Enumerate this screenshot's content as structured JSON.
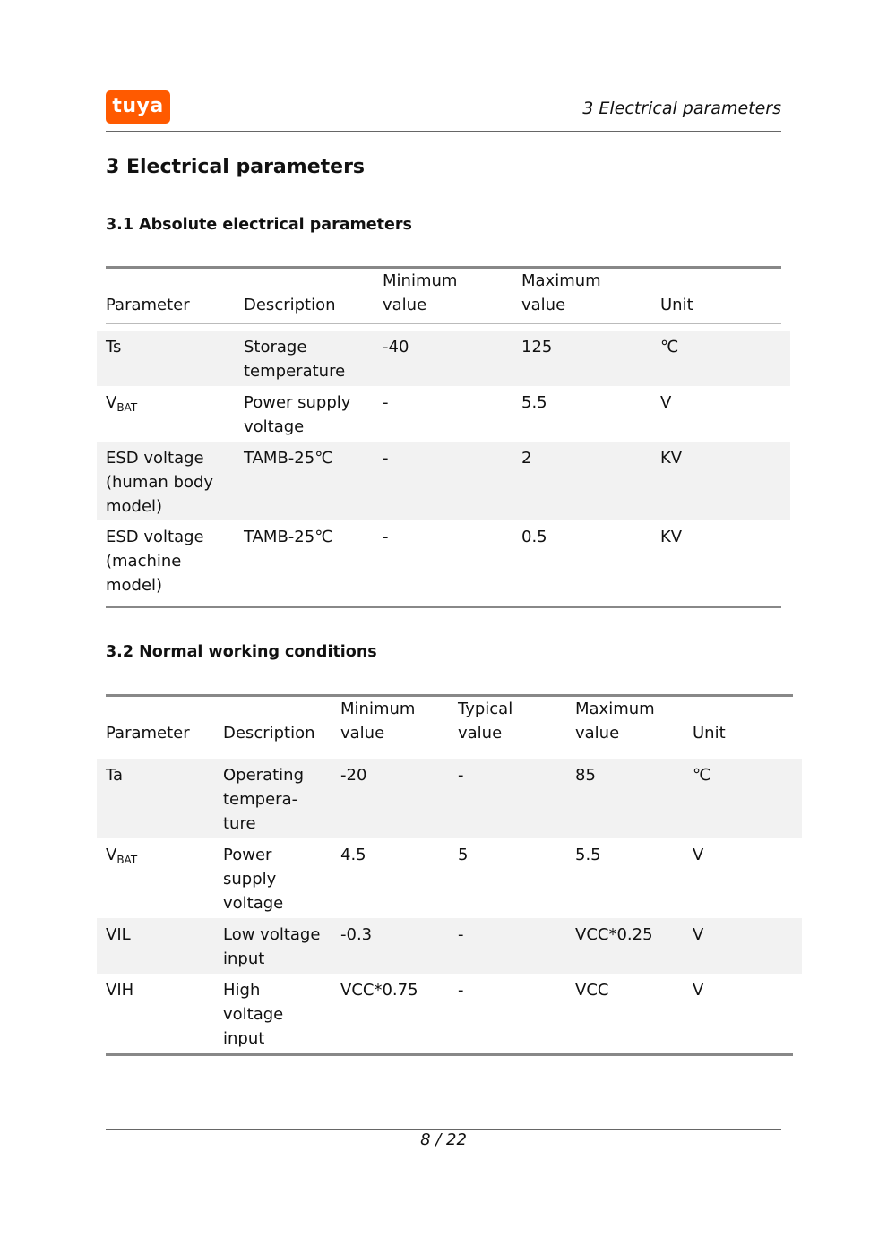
{
  "header": {
    "logo_text": "tuya",
    "logo_color": "#ff5a00",
    "running_title": "3  Electrical parameters"
  },
  "section_title": "3  Electrical parameters",
  "table1": {
    "title": "3.1  Absolute electrical parameters",
    "columns": [
      "Parameter",
      "Description",
      "Minimum\nvalue",
      "Maximum\nvalue",
      "Unit"
    ],
    "rows": [
      [
        {
          "main": "Ts"
        },
        "Storage\ntemperature",
        "-40",
        "125",
        "℃"
      ],
      [
        {
          "main": "V",
          "sub": "BAT"
        },
        "Power supply\nvoltage",
        "-",
        "5.5",
        "V"
      ],
      [
        {
          "main": "ESD voltage\n(human body\nmodel)"
        },
        "TAMB-25℃",
        "-",
        "2",
        "KV"
      ],
      [
        {
          "main": "ESD voltage\n(machine\nmodel)"
        },
        "TAMB-25℃",
        "-",
        "0.5",
        "KV"
      ]
    ]
  },
  "table2": {
    "title": "3.2  Normal working conditions",
    "columns": [
      "Parameter",
      "Description",
      "Minimum\nvalue",
      "Typical\nvalue",
      "Maximum\nvalue",
      "Unit"
    ],
    "rows": [
      [
        {
          "main": "Ta"
        },
        "Operating\ntempera-\nture",
        "-20",
        "-",
        "85",
        "℃"
      ],
      [
        {
          "main": "V",
          "sub": "BAT"
        },
        "Power\nsupply\nvoltage",
        "4.5",
        "5",
        "5.5",
        "V"
      ],
      [
        {
          "main": "VIL"
        },
        "Low voltage\ninput",
        "-0.3",
        "-",
        "VCC*0.25",
        "V"
      ],
      [
        {
          "main": "VIH"
        },
        "High\nvoltage\ninput",
        "VCC*0.75",
        "-",
        "VCC",
        "V"
      ]
    ]
  },
  "footer": {
    "page": "8 / 22"
  }
}
